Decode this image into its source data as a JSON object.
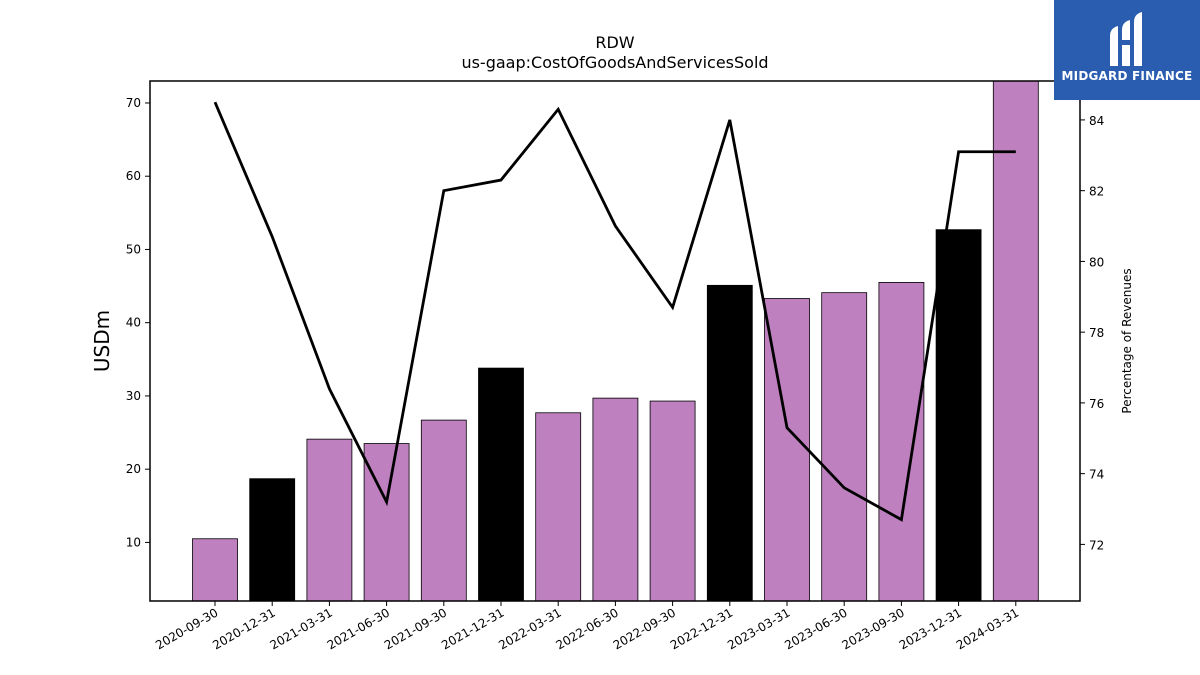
{
  "logo": {
    "text": "MIDGARD FINANCE",
    "icon": "midgard-logo-icon",
    "color": "#2a5db0"
  },
  "chart_data": {
    "type": "bar",
    "title": "RDW",
    "subtitle": "us-gaap:CostOfGoodsAndServicesSold",
    "ylabel": "USDm",
    "y2label": "Percentage of Revenues",
    "categories": [
      "2020-09-30",
      "2020-12-31",
      "2021-03-31",
      "2021-06-30",
      "2021-09-30",
      "2021-12-31",
      "2022-03-31",
      "2022-06-30",
      "2022-09-30",
      "2022-12-31",
      "2023-03-31",
      "2023-06-30",
      "2023-09-30",
      "2023-12-31",
      "2024-03-31"
    ],
    "values": [
      10.5,
      18.7,
      24.1,
      23.5,
      26.7,
      33.8,
      27.7,
      29.7,
      29.3,
      45.1,
      43.3,
      44.1,
      45.5,
      52.7,
      73.5
    ],
    "bar_colors": [
      "#bf80bf",
      "#000000",
      "#bf80bf",
      "#bf80bf",
      "#bf80bf",
      "#000000",
      "#bf80bf",
      "#bf80bf",
      "#bf80bf",
      "#000000",
      "#bf80bf",
      "#bf80bf",
      "#bf80bf",
      "#000000",
      "#bf80bf"
    ],
    "line_series": {
      "values": [
        84.5,
        80.7,
        76.4,
        73.2,
        82.0,
        82.3,
        84.3,
        81.0,
        78.7,
        84.0,
        75.3,
        73.6,
        72.7,
        83.1,
        83.1
      ],
      "color": "#000000"
    },
    "ylim": [
      2,
      73
    ],
    "yticks": [
      10,
      20,
      30,
      40,
      50,
      60,
      70
    ],
    "y2lim": [
      70.4,
      85.1
    ],
    "y2ticks": [
      72,
      74,
      76,
      78,
      80,
      82,
      84
    ],
    "grid": false
  }
}
